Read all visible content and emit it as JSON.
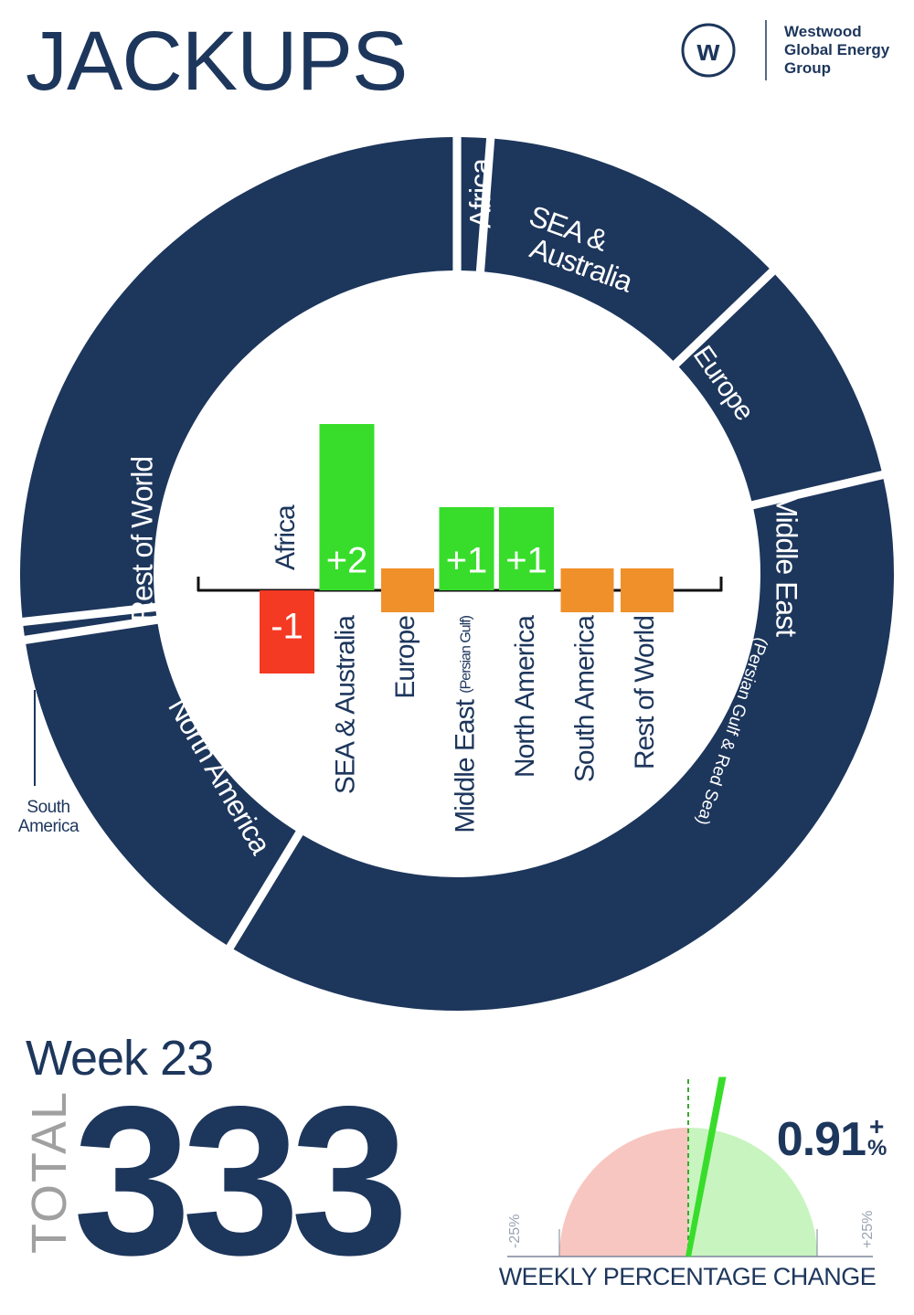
{
  "page": {
    "title": "JACKUPS"
  },
  "brand": {
    "line1": "Westwood",
    "line2": "Global Energy",
    "line3": "Group",
    "mark": "w",
    "color": "#1d365c"
  },
  "colors": {
    "navy": "#1d365c",
    "green": "#38dd2b",
    "red": "#f53a24",
    "orange": "#f0902a",
    "pink": "#f8c6c0",
    "lightgreen": "#c8f4bf"
  },
  "chart_data": [
    {
      "type": "pie",
      "segments": [
        {
          "name": "Africa",
          "label": "Africa",
          "sublabel": "",
          "angle_deg": 4.4
        },
        {
          "name": "SEA & Australia",
          "label_lines": [
            "SEA &",
            "Australia"
          ],
          "sublabel": "",
          "angle_deg": 41.8
        },
        {
          "name": "Europe",
          "label": "Europe",
          "sublabel": "",
          "angle_deg": 30.7
        },
        {
          "name": "Middle East",
          "label": "Middle East",
          "sublabel": "(Persian Gulf & Red Sea)",
          "angle_deg": 134.4
        },
        {
          "name": "North America",
          "label": "North America",
          "sublabel": "",
          "angle_deg": 50.0
        },
        {
          "name": "South America",
          "label_lines": [
            "South",
            "America"
          ],
          "sublabel": "",
          "angle_deg": 2.4
        },
        {
          "name": "Rest of World",
          "label": "Rest of World",
          "sublabel": "",
          "angle_deg": 96.3
        }
      ]
    },
    {
      "type": "bar",
      "title": "",
      "categories": [
        "Africa",
        "SEA & Australia",
        "Europe",
        "Middle East",
        "North America",
        "South America",
        "Rest of World"
      ],
      "category_sublabels": [
        "",
        "",
        "",
        "(Persian Gulf)",
        "",
        "",
        ""
      ],
      "values": [
        -1,
        2,
        0,
        1,
        1,
        0,
        0
      ],
      "value_labels": [
        "-1",
        "+2",
        "",
        "+1",
        "+1",
        "",
        ""
      ]
    },
    {
      "type": "gauge",
      "value_percent": 0.91,
      "value_label": "0.91",
      "suffix_sign": "+",
      "suffix_unit": "%",
      "range": [
        -25,
        25
      ],
      "min_label": "-25%",
      "max_label": "+25%",
      "caption": "WEEKLY PERCENTAGE CHANGE"
    }
  ],
  "stats": {
    "week_label": "Week 23",
    "total_label": "TOTAL",
    "total_value": "333"
  }
}
